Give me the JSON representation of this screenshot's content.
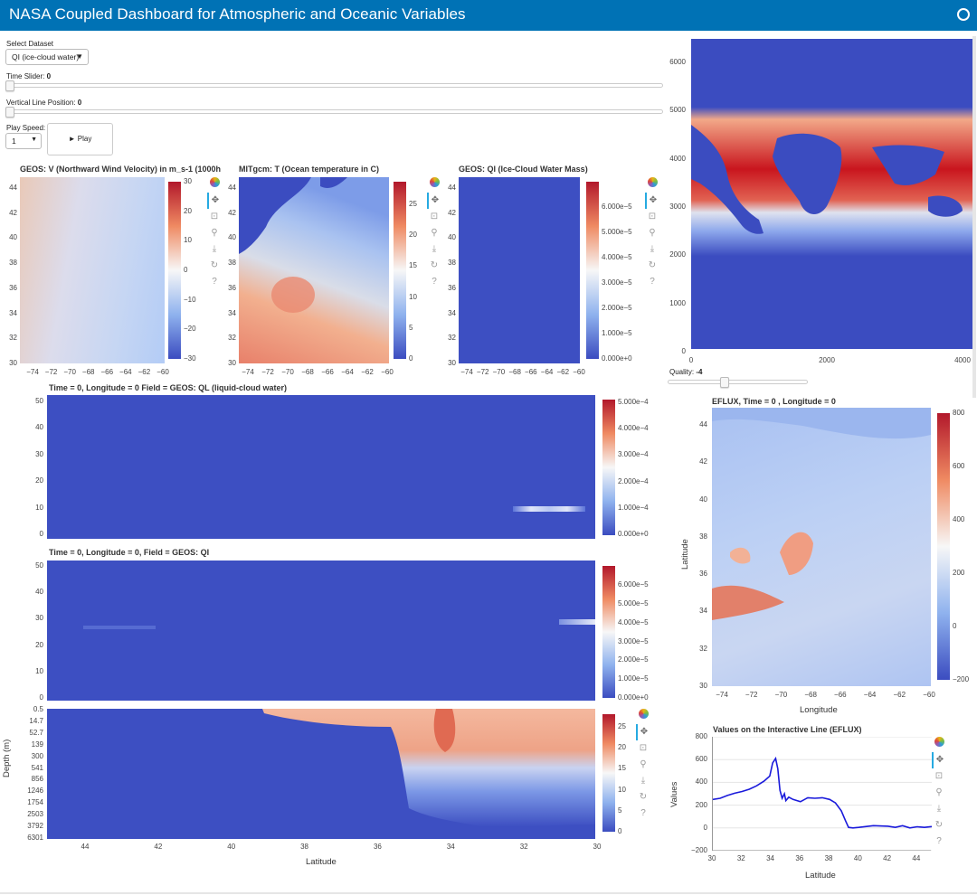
{
  "app": {
    "title": "NASA Coupled Dashboard for Atmospheric and Oceanic Variables"
  },
  "controls": {
    "dataset_label": "Select Dataset",
    "dataset_value": "QI (ice-cloud water)",
    "time_label": "Time Slider:",
    "time_value": "0",
    "time_fraction": 0,
    "vline_label": "Vertical Line Position:",
    "vline_value": "0",
    "vline_fraction": 0,
    "speed_label": "Play Speed:",
    "speed_value": "1",
    "play_label": "► Play",
    "quality_label": "Quality:",
    "quality_value": "-4",
    "quality_fraction": 0.4
  },
  "maps": {
    "lon_ticks": [
      "−74",
      "−72",
      "−70",
      "−68",
      "−66",
      "−64",
      "−62",
      "−60"
    ],
    "lat_ticks": [
      "44",
      "42",
      "40",
      "38",
      "36",
      "34",
      "32",
      "30"
    ],
    "v_title": "GEOS: V (Northward Wind Velocity) in m_s-1 (1000h",
    "v_cbar": [
      "30",
      "20",
      "10",
      "0",
      "−10",
      "−20",
      "−30"
    ],
    "t_title": "MITgcm: T (Ocean temperature in C)",
    "t_cbar": [
      "25",
      "20",
      "15",
      "10",
      "5",
      "0"
    ],
    "qi_title": "GEOS: QI (Ice-Cloud Water Mass)",
    "qi_cbar": [
      "6.000e−5",
      "5.000e−5",
      "4.000e−5",
      "3.000e−5",
      "2.000e−5",
      "1.000e−5",
      "0.000e+0"
    ]
  },
  "global_map": {
    "y_ticks": [
      "6000",
      "5000",
      "4000",
      "3000",
      "2000",
      "1000",
      "0"
    ],
    "x_ticks": [
      "0",
      "2000",
      "4000"
    ]
  },
  "sections": {
    "ql_title": "Time = 0, Longitude = 0     Field = GEOS: QL (liquid-cloud water)",
    "ql_y": [
      "50",
      "40",
      "30",
      "20",
      "10",
      "0"
    ],
    "ql_cbar": [
      "5.000e−4",
      "4.000e−4",
      "3.000e−4",
      "2.000e−4",
      "1.000e−4",
      "0.000e+0"
    ],
    "qi_title": "Time = 0, Longitude = 0,     Field = GEOS: QI",
    "qi_y": [
      "50",
      "40",
      "30",
      "20",
      "10",
      "0"
    ],
    "qi_cbar": [
      "6.000e−5",
      "5.000e−5",
      "4.000e−5",
      "3.000e−5",
      "2.000e−5",
      "1.000e−5",
      "0.000e+0"
    ],
    "depth_y": [
      "0.5",
      "14.7",
      "52.7",
      "139",
      "300",
      "541",
      "856",
      "1246",
      "1754",
      "2503",
      "3792",
      "6301"
    ],
    "depth_ylabel": "Depth (m)",
    "depth_x": [
      "44",
      "42",
      "40",
      "38",
      "36",
      "34",
      "32",
      "30"
    ],
    "depth_xlabel": "Latitude",
    "depth_cbar": [
      "25",
      "20",
      "15",
      "10",
      "5",
      "0"
    ]
  },
  "eflux": {
    "title": "EFLUX,      Time = 0 ,      Longitude = 0",
    "xlabel": "Longitude",
    "ylabel": "Latitude",
    "x_ticks": [
      "−74",
      "−72",
      "−70",
      "−68",
      "−66",
      "−64",
      "−62",
      "−60"
    ],
    "y_ticks": [
      "44",
      "42",
      "40",
      "38",
      "36",
      "34",
      "32",
      "30"
    ],
    "cbar": [
      "800",
      "600",
      "400",
      "200",
      "0",
      "−200"
    ]
  },
  "chart_data": {
    "type": "line",
    "title": "Values on the Interactive Line (EFLUX)",
    "xlabel": "Latitude",
    "ylabel": "Values",
    "xlim": [
      30,
      45
    ],
    "ylim": [
      -200,
      800
    ],
    "x_ticks": [
      "30",
      "32",
      "34",
      "36",
      "38",
      "40",
      "42",
      "44"
    ],
    "y_ticks": [
      "800",
      "600",
      "400",
      "200",
      "0",
      "−200"
    ],
    "grid": true,
    "series": [
      {
        "color": "#1a1adb",
        "x": [
          30,
          30.5,
          31,
          31.5,
          32,
          32.5,
          33,
          33.5,
          33.9,
          34.1,
          34.3,
          34.45,
          34.6,
          34.75,
          34.9,
          35.0,
          35.2,
          35.5,
          36,
          36.5,
          37,
          37.5,
          38,
          38.4,
          38.8,
          39.1,
          39.3,
          39.6,
          40,
          41,
          42,
          42.5,
          43,
          43.5,
          44,
          44.5,
          45
        ],
        "values": [
          250,
          260,
          285,
          305,
          320,
          340,
          370,
          410,
          455,
          570,
          610,
          520,
          330,
          260,
          300,
          240,
          270,
          250,
          230,
          265,
          260,
          265,
          250,
          220,
          150,
          60,
          5,
          0,
          5,
          20,
          15,
          5,
          20,
          0,
          10,
          5,
          12
        ]
      }
    ]
  }
}
